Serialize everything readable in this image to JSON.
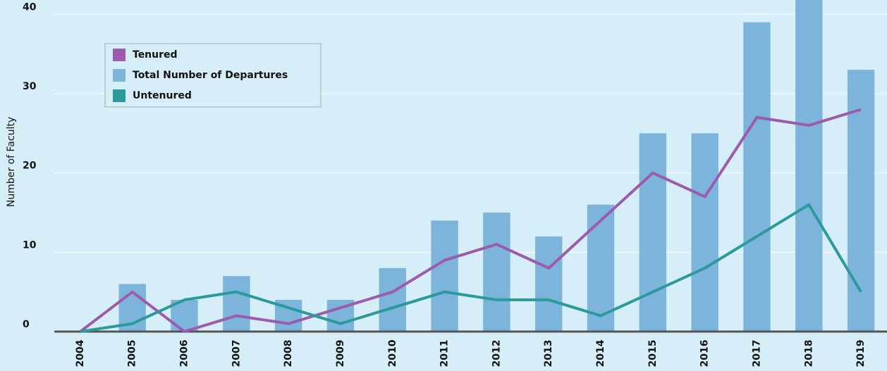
{
  "chart_data": {
    "type": "bar",
    "y_label": "Number of Faculty",
    "categories": [
      "2004",
      "2005",
      "2006",
      "2007",
      "2008",
      "2009",
      "2010",
      "2011",
      "2012",
      "2013",
      "2014",
      "2015",
      "2016",
      "2017",
      "2018",
      "2019"
    ],
    "series": [
      {
        "name": "Tenured",
        "type": "line",
        "color": "#9b5cae",
        "values": [
          0,
          5,
          0,
          2,
          1,
          3,
          5,
          9,
          11,
          8,
          14,
          20,
          17,
          27,
          26,
          28
        ]
      },
      {
        "name": "Total Number of Departures",
        "type": "bar",
        "color": "#7db4dc",
        "values": [
          0,
          6,
          4,
          7,
          4,
          4,
          8,
          14,
          15,
          12,
          16,
          25,
          25,
          39,
          42,
          33
        ]
      },
      {
        "name": "Untenured",
        "type": "line",
        "color": "#2b9a9c",
        "values": [
          0,
          1,
          4,
          5,
          3,
          1,
          3,
          5,
          4,
          4,
          2,
          5,
          8,
          12,
          16,
          5
        ]
      }
    ],
    "ylim": [
      0,
      41.8
    ],
    "yticks": [
      0,
      10,
      20,
      30,
      40
    ],
    "grid": true,
    "legend": "upper left"
  }
}
